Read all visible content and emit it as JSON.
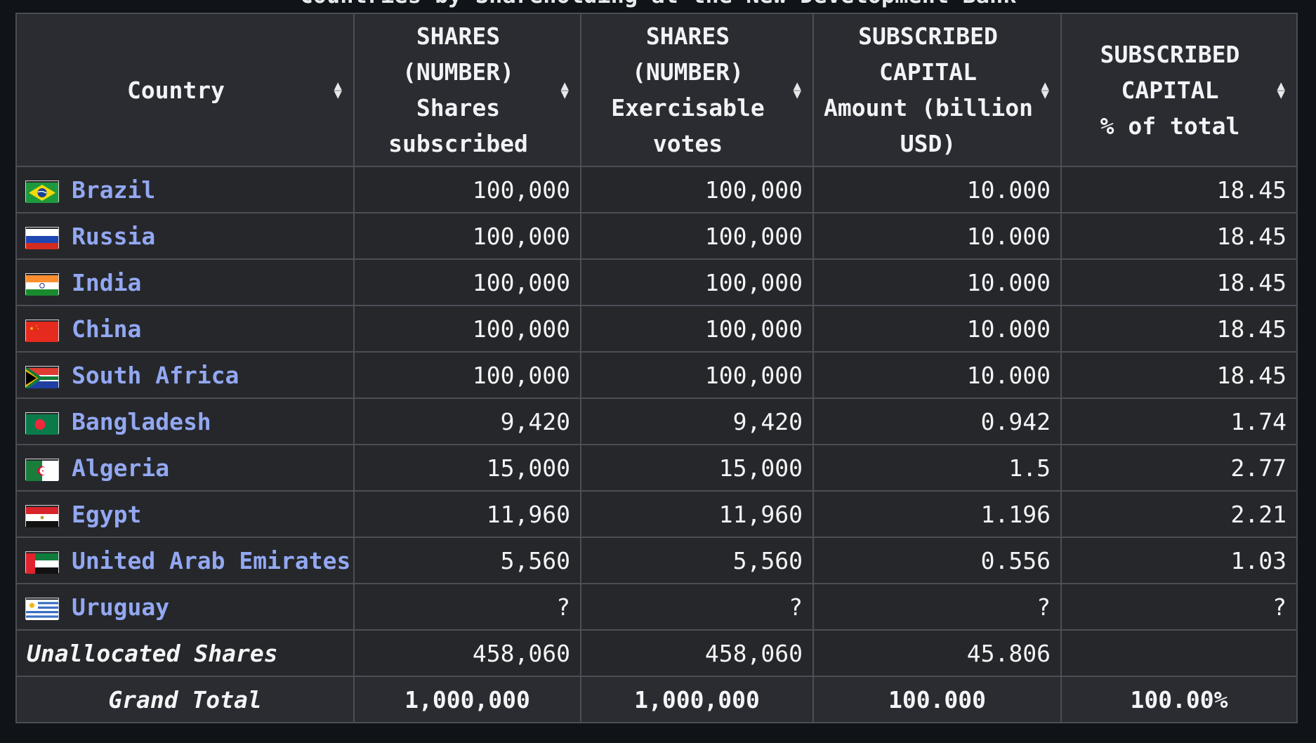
{
  "caption": "Countries by Shareholding at the New Development Bank",
  "headers": [
    {
      "lines": [
        "Country"
      ]
    },
    {
      "lines": [
        "SHARES",
        "(NUMBER)",
        "Shares",
        "subscribed"
      ]
    },
    {
      "lines": [
        "SHARES",
        "(NUMBER)",
        "Exercisable",
        "votes"
      ]
    },
    {
      "lines": [
        "SUBSCRIBED",
        "CAPITAL",
        "Amount (billion",
        "USD)"
      ]
    },
    {
      "lines": [
        "SUBSCRIBED",
        "CAPITAL",
        "% of total"
      ]
    }
  ],
  "sort_icon": "sort-updown-icon",
  "rows": [
    {
      "country": "Brazil",
      "flag": "flag-brazil-icon",
      "shares": "100,000",
      "votes": "100,000",
      "amount": "10.000",
      "pct": "18.45"
    },
    {
      "country": "Russia",
      "flag": "flag-russia-icon",
      "shares": "100,000",
      "votes": "100,000",
      "amount": "10.000",
      "pct": "18.45"
    },
    {
      "country": "India",
      "flag": "flag-india-icon",
      "shares": "100,000",
      "votes": "100,000",
      "amount": "10.000",
      "pct": "18.45"
    },
    {
      "country": "China",
      "flag": "flag-china-icon",
      "shares": "100,000",
      "votes": "100,000",
      "amount": "10.000",
      "pct": "18.45"
    },
    {
      "country": "South Africa",
      "flag": "flag-south-africa-icon",
      "shares": "100,000",
      "votes": "100,000",
      "amount": "10.000",
      "pct": "18.45"
    },
    {
      "country": "Bangladesh",
      "flag": "flag-bangladesh-icon",
      "shares": "9,420",
      "votes": "9,420",
      "amount": "0.942",
      "pct": "1.74"
    },
    {
      "country": "Algeria",
      "flag": "flag-algeria-icon",
      "shares": "15,000",
      "votes": "15,000",
      "amount": "1.5",
      "pct": "2.77"
    },
    {
      "country": "Egypt",
      "flag": "flag-egypt-icon",
      "shares": "11,960",
      "votes": "11,960",
      "amount": "1.196",
      "pct": "2.21"
    },
    {
      "country": "United Arab Emirates",
      "flag": "flag-uae-icon",
      "shares": "5,560",
      "votes": "5,560",
      "amount": "0.556",
      "pct": "1.03"
    },
    {
      "country": "Uruguay",
      "flag": "flag-uruguay-icon",
      "shares": "?",
      "votes": "?",
      "amount": "?",
      "pct": "?"
    }
  ],
  "unallocated": {
    "label": "Unallocated Shares",
    "shares": "458,060",
    "votes": "458,060",
    "amount": "45.806",
    "pct": ""
  },
  "total": {
    "label": "Grand Total",
    "shares": "1,000,000",
    "votes": "1,000,000",
    "amount": "100.000",
    "pct": "100.00%"
  }
}
